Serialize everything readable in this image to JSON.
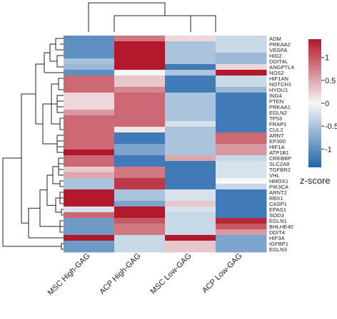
{
  "chart_data": {
    "type": "heatmap",
    "columns": [
      "MSC High-GAG",
      "ACP High-GAG",
      "MSC Low-GAG",
      "ACP Low-GAG"
    ],
    "rows": [
      "ADM",
      "PRKAA2",
      "VEGFA",
      "HIG2",
      "DDIT4L",
      "ANGPTL4",
      "NOS2",
      "HIF1AN",
      "NOTCH1",
      "HYOU1",
      "ING4",
      "PTEN",
      "PRKAA1",
      "EGLN2",
      "TP53",
      "FRAP1",
      "CUL2",
      "ARNT",
      "EP300",
      "HIF1A",
      "ATP1B1",
      "CREBBP",
      "SLC2A8",
      "TGFBR2",
      "VHL",
      "HMOX1",
      "PIK3CA",
      "ARNT2",
      "RBX1",
      "CASP1",
      "EPAS1",
      "SOD3",
      "EGLN1",
      "BHLHE40",
      "DDIT4",
      "HIF3A",
      "IGFBP1",
      "EGLN3"
    ],
    "values": [
      [
        -1.0,
        0.8,
        0.2,
        -0.3
      ],
      [
        -1.0,
        1.4,
        -0.5,
        -0.3
      ],
      [
        -1.0,
        1.4,
        -0.5,
        -0.3
      ],
      [
        -1.0,
        1.4,
        -0.5,
        -0.6
      ],
      [
        -0.5,
        1.4,
        -0.5,
        -0.6
      ],
      [
        -0.6,
        1.4,
        -1.2,
        0.2
      ],
      [
        -1.0,
        0.0,
        -0.5,
        1.4
      ],
      [
        0.9,
        0.3,
        -1.2,
        -0.3
      ],
      [
        0.9,
        0.3,
        -1.2,
        -0.3
      ],
      [
        0.9,
        0.7,
        -1.2,
        -0.6
      ],
      [
        0.2,
        0.9,
        -0.5,
        -1.2
      ],
      [
        0.2,
        0.9,
        -0.5,
        -1.2
      ],
      [
        0.2,
        0.9,
        -0.5,
        -1.2
      ],
      [
        0.6,
        0.9,
        -0.5,
        -1.2
      ],
      [
        0.9,
        0.9,
        -0.5,
        -1.2
      ],
      [
        0.9,
        0.9,
        -0.2,
        -1.2
      ],
      [
        0.9,
        0.1,
        -0.5,
        -1.2
      ],
      [
        0.9,
        -1.2,
        -0.5,
        0.9
      ],
      [
        0.9,
        -1.2,
        -0.5,
        0.9
      ],
      [
        0.9,
        -0.8,
        -0.5,
        0.6
      ],
      [
        1.4,
        -0.8,
        -0.5,
        0.6
      ],
      [
        0.9,
        -1.2,
        0.5,
        -0.3
      ],
      [
        0.9,
        -1.2,
        -1.2,
        -0.2
      ],
      [
        0.3,
        0.8,
        -1.2,
        -0.2
      ],
      [
        0.5,
        0.8,
        -1.2,
        -0.2
      ],
      [
        -0.5,
        1.2,
        -1.2,
        0.0
      ],
      [
        -0.5,
        1.2,
        -1.2,
        -0.3
      ],
      [
        1.4,
        -0.5,
        -0.2,
        -1.2
      ],
      [
        1.4,
        -0.5,
        -0.2,
        -1.2
      ],
      [
        1.4,
        -0.8,
        0.3,
        -1.2
      ],
      [
        -0.2,
        1.4,
        -0.2,
        -1.2
      ],
      [
        0.9,
        1.4,
        -0.3,
        -1.2
      ],
      [
        -0.9,
        1.0,
        -0.3,
        1.3
      ],
      [
        -0.9,
        0.8,
        -0.3,
        1.0
      ],
      [
        -0.9,
        0.8,
        -0.3,
        0.6
      ],
      [
        1.4,
        -0.3,
        1.4,
        -0.8
      ],
      [
        -0.9,
        -0.3,
        0.3,
        -0.8
      ],
      [
        -0.9,
        -0.3,
        0.3,
        -0.8
      ]
    ],
    "colorbar": {
      "label": "z-score",
      "ticks": [
        "1",
        "0.5",
        "0",
        "-0.5",
        "-1"
      ],
      "tick_values": [
        1,
        0.5,
        0,
        -0.5,
        -1
      ],
      "range": [
        -1.4,
        1.4
      ],
      "colors": {
        "low": "#2166ac",
        "mid": "#f7f7f7",
        "high": "#b2182b"
      }
    },
    "row_dendrogram": true,
    "column_dendrogram": true
  }
}
